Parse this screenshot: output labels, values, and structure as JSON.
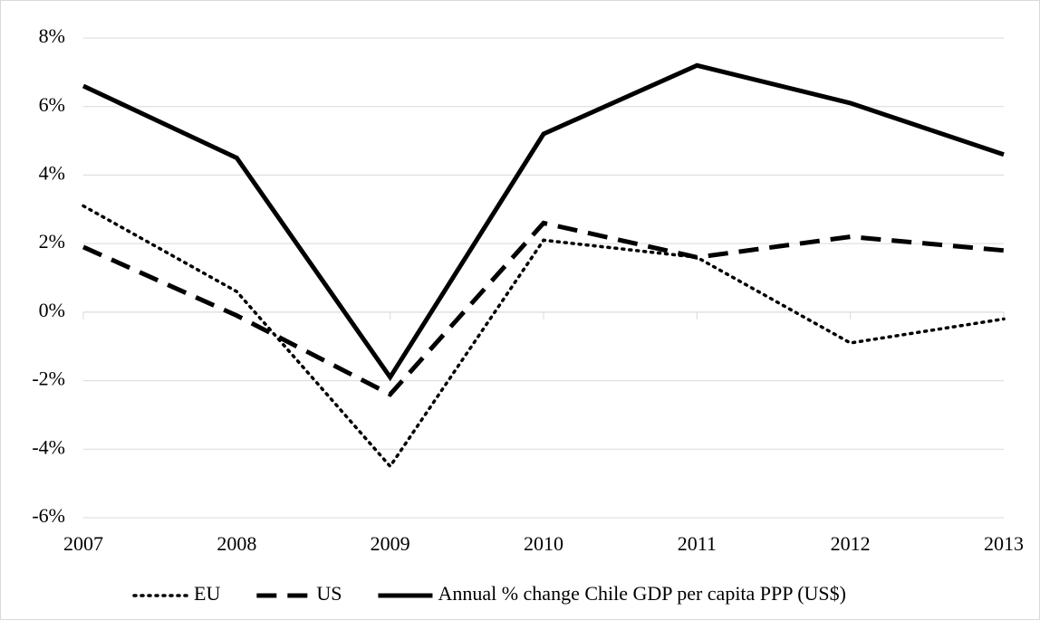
{
  "chart_data": {
    "type": "line",
    "x": [
      2007,
      2008,
      2009,
      2010,
      2011,
      2012,
      2013
    ],
    "xlim": [
      2007,
      2013
    ],
    "xticks": [
      2007,
      2008,
      2009,
      2010,
      2011,
      2012,
      2013
    ],
    "ylim": [
      -6,
      8
    ],
    "yticks": [
      {
        "value": -6,
        "label": "-6%"
      },
      {
        "value": -4,
        "label": "-4%"
      },
      {
        "value": -2,
        "label": "-2%"
      },
      {
        "value": 0,
        "label": "0%"
      },
      {
        "value": 2,
        "label": "2%"
      },
      {
        "value": 4,
        "label": "4%"
      },
      {
        "value": 6,
        "label": "6%"
      },
      {
        "value": 8,
        "label": "8%"
      }
    ],
    "grid": true,
    "legend": "bottom",
    "series": [
      {
        "name": "EU",
        "color": "#000000",
        "style": "dotted",
        "values": [
          3.1,
          0.6,
          -4.5,
          2.1,
          1.6,
          -0.9,
          -0.2
        ]
      },
      {
        "name": "US",
        "color": "#000000",
        "style": "dashed",
        "values": [
          1.9,
          -0.1,
          -2.4,
          2.6,
          1.6,
          2.2,
          1.8
        ]
      },
      {
        "name": "Annual % change Chile GDP per capita PPP (US$)",
        "color": "#000000",
        "style": "solid",
        "values": [
          6.6,
          4.5,
          -1.9,
          5.2,
          7.2,
          6.1,
          4.6
        ]
      }
    ]
  }
}
